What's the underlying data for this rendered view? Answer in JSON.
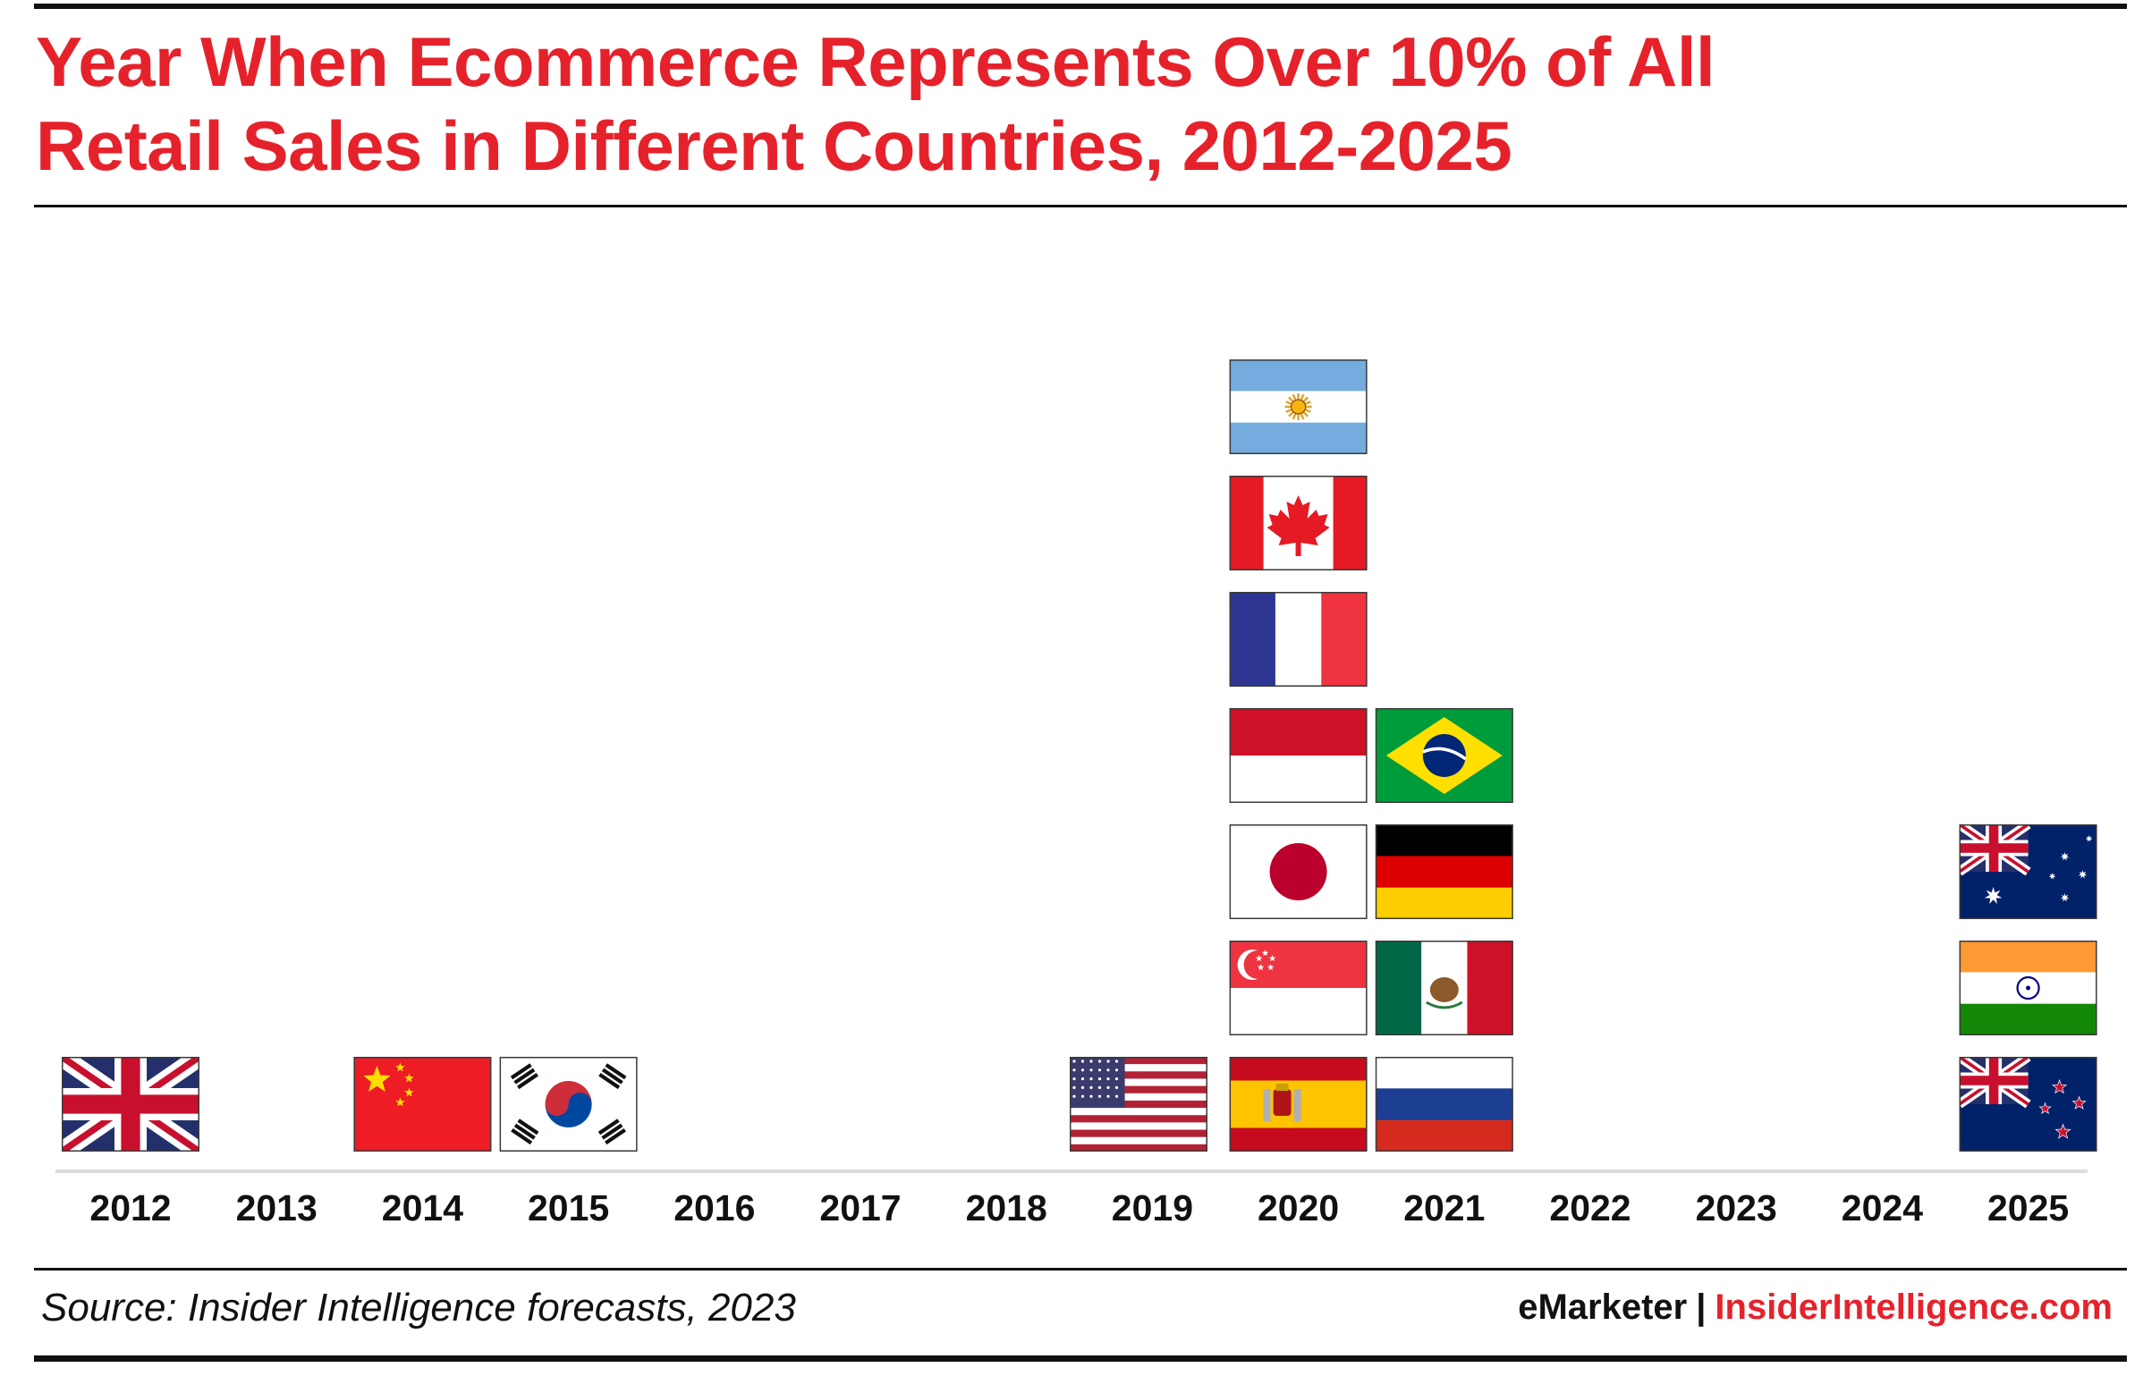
{
  "title": {
    "line1": "Year When Ecommerce Represents Over 10% of All",
    "line2": "Retail Sales in Different Countries, 2012-2025"
  },
  "footer": {
    "source": "Source: Insider Intelligence forecasts, 2023",
    "brand_left": "eMarketer",
    "separator": "|",
    "brand_right": "InsiderIntelligence.com"
  },
  "colors": {
    "accent": "#e5222b",
    "text": "#111111",
    "baseline": "#dcdcdc"
  },
  "chart_data": {
    "type": "pictogram",
    "categories": [
      "2012",
      "2013",
      "2014",
      "2015",
      "2016",
      "2017",
      "2018",
      "2019",
      "2020",
      "2021",
      "2022",
      "2023",
      "2024",
      "2025"
    ],
    "flags_by_year": {
      "2012": [
        "uk-flag"
      ],
      "2014": [
        "china-flag"
      ],
      "2015": [
        "south-korea-flag"
      ],
      "2019": [
        "usa-flag"
      ],
      "2020": [
        "spain-flag",
        "singapore-flag",
        "japan-flag",
        "indonesia-flag",
        "france-flag",
        "canada-flag",
        "argentina-flag"
      ],
      "2021": [
        "russia-flag",
        "mexico-flag",
        "germany-flag",
        "brazil-flag"
      ],
      "2025": [
        "new-zealand-flag",
        "india-flag",
        "australia-flag"
      ]
    },
    "counts": [
      1,
      0,
      1,
      1,
      0,
      0,
      0,
      1,
      7,
      4,
      0,
      0,
      0,
      3
    ]
  }
}
